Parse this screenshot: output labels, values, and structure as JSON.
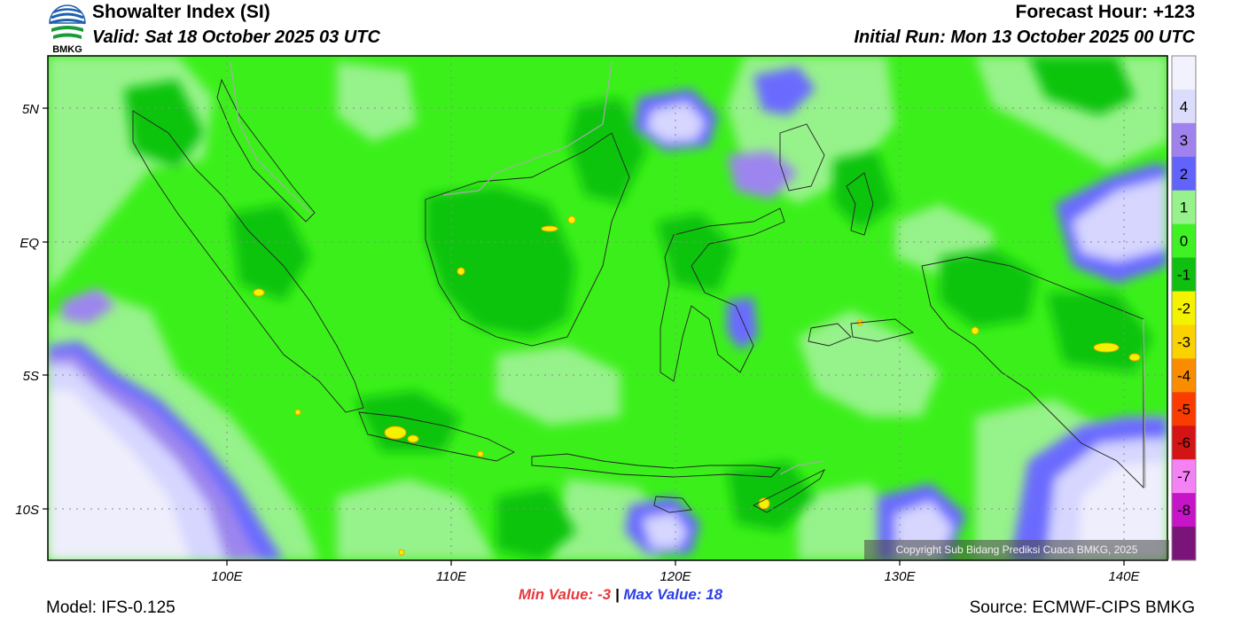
{
  "header": {
    "logo_text": "BMKG",
    "title": "Showalter Index (SI)",
    "valid": "Valid: Sat 18 October 2025 03 UTC",
    "forecast_hour": "Forecast Hour: +123",
    "initial_run": "Initial Run: Mon 13 October 2025 00 UTC"
  },
  "map": {
    "lat_labels": [
      "5N",
      "EQ",
      "5S",
      "10S"
    ],
    "lon_labels": [
      "100E",
      "110E",
      "120E",
      "130E",
      "140E"
    ],
    "copyright": "Copyright Sub Bidang Prediksi Cuaca BMKG, 2025",
    "colors": {
      "land_border": "#222222",
      "dark_green": "#11c411",
      "green": "#3bf01a",
      "light_green": "#96f28a",
      "blue": "#6a6aff",
      "violet": "#9c85ee",
      "lavender": "#d6d6ff",
      "pale": "#eeeefc"
    }
  },
  "colorbar": {
    "labels": [
      "4",
      "3",
      "2",
      "1",
      "0",
      "-1",
      "-2",
      "-3",
      "-4",
      "-5",
      "-6",
      "-7",
      "-8"
    ],
    "colors": [
      "#f2f2fd",
      "#dcdcfc",
      "#9f82ee",
      "#6262fc",
      "#96f28a",
      "#3ef224",
      "#10c010",
      "#f5f200",
      "#fad200",
      "#fa8c00",
      "#fa3c00",
      "#d41414",
      "#f582f5",
      "#c814c8",
      "#7a1478"
    ]
  },
  "footer": {
    "min_label": "Min Value:  -3",
    "separator": "|",
    "max_label": "Max Value:  18",
    "model": "Model: IFS-0.125",
    "source": "Source: ECMWF-CIPS BMKG"
  }
}
